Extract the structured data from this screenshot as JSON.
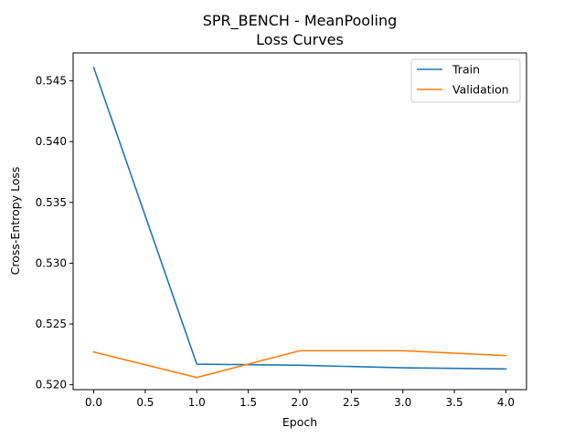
{
  "chart_data": {
    "type": "line",
    "title": [
      "SPR_BENCH - MeanPooling",
      "Loss Curves"
    ],
    "xlabel": "Epoch",
    "ylabel": "Cross-Entropy Loss",
    "x": [
      0,
      1,
      2,
      3,
      4
    ],
    "xlim": [
      -0.2,
      4.2
    ],
    "ylim": [
      0.5196,
      0.5473
    ],
    "xticks": [
      "0.0",
      "0.5",
      "1.0",
      "1.5",
      "2.0",
      "2.5",
      "3.0",
      "3.5",
      "4.0"
    ],
    "yticks": [
      "0.520",
      "0.525",
      "0.530",
      "0.535",
      "0.540",
      "0.545"
    ],
    "grid": false,
    "legend_position": "top-right",
    "series": [
      {
        "name": "Train",
        "color": "#1f77b4",
        "values": [
          0.5461,
          0.5217,
          0.5216,
          0.5214,
          0.5213
        ]
      },
      {
        "name": "Validation",
        "color": "#ff7f0e",
        "values": [
          0.5227,
          0.5206,
          0.5228,
          0.5228,
          0.5224
        ]
      }
    ]
  }
}
